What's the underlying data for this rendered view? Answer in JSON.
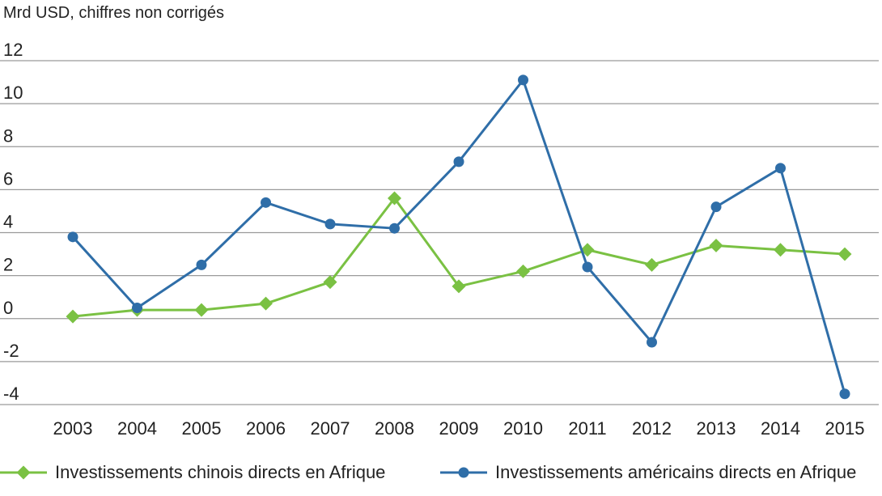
{
  "chart_data": {
    "type": "line",
    "unit_label": "Mrd USD, chiffres non corrigés",
    "categories": [
      "2003",
      "2004",
      "2005",
      "2006",
      "2007",
      "2008",
      "2009",
      "2010",
      "2011",
      "2012",
      "2013",
      "2014",
      "2015"
    ],
    "ylim": [
      -4,
      12
    ],
    "yticks": [
      12,
      10,
      8,
      6,
      4,
      2,
      0,
      -2,
      -4
    ],
    "grid": true,
    "legend_position": "bottom",
    "series": [
      {
        "name": "Investissements chinois directs en Afrique",
        "color": "#7ac143",
        "marker": "diamond",
        "values": [
          0.1,
          0.4,
          0.4,
          0.7,
          1.7,
          5.6,
          1.5,
          2.2,
          3.2,
          2.5,
          3.4,
          3.2,
          3.0
        ]
      },
      {
        "name": "Investissements américains directs en Afrique",
        "color": "#2f6ea8",
        "marker": "circle",
        "values": [
          3.8,
          0.5,
          2.5,
          5.4,
          4.4,
          4.2,
          7.3,
          11.1,
          2.4,
          -1.1,
          5.2,
          7.0,
          -3.5
        ]
      }
    ]
  }
}
